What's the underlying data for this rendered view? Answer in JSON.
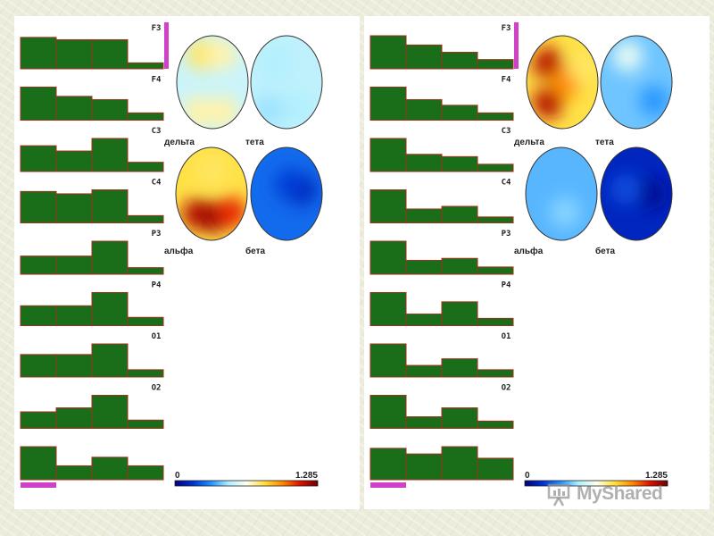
{
  "chart_data": [
    {
      "type": "bar",
      "categories": [
        "F3",
        "F4",
        "C3",
        "C4",
        "P3",
        "P4",
        "O1",
        "O2"
      ],
      "band_labels": [
        "дельта",
        "тета",
        "альфа",
        "бета"
      ],
      "channels": [
        {
          "name": "F3",
          "values": [
            0.95,
            0.88,
            0.88,
            0.18
          ],
          "marker": "right"
        },
        {
          "name": "F4",
          "values": [
            1.0,
            0.72,
            0.62,
            0.22
          ]
        },
        {
          "name": "C3",
          "values": [
            0.78,
            0.62,
            1.0,
            0.28
          ]
        },
        {
          "name": "C4",
          "values": [
            0.95,
            0.88,
            1.0,
            0.22
          ]
        },
        {
          "name": "P3",
          "values": [
            0.55,
            0.55,
            1.0,
            0.2
          ]
        },
        {
          "name": "P4",
          "values": [
            0.6,
            0.6,
            1.0,
            0.25
          ]
        },
        {
          "name": "O1",
          "values": [
            0.68,
            0.68,
            1.0,
            0.22
          ]
        },
        {
          "name": "O2",
          "values": [
            0.5,
            0.62,
            1.0,
            0.25
          ]
        },
        {
          "name": "",
          "values": [
            1.0,
            0.42,
            0.68,
            0.42
          ],
          "marker": "bottom"
        }
      ],
      "maps": [
        {
          "label": "дельта",
          "hot": [
            {
              "cx": 0.35,
              "cy": 0.2,
              "v": 0.6
            },
            {
              "cx": 0.62,
              "cy": 0.2,
              "v": 0.55
            },
            {
              "cx": 0.3,
              "cy": 0.82,
              "v": 0.55
            },
            {
              "cx": 0.65,
              "cy": 0.82,
              "v": 0.55
            }
          ],
          "base": 0.42
        },
        {
          "label": "тета",
          "hot": [
            {
              "cx": 0.35,
              "cy": 0.3,
              "v": 0.38
            },
            {
              "cx": 0.62,
              "cy": 0.78,
              "v": 0.38
            },
            {
              "cx": 0.25,
              "cy": 0.8,
              "v": 0.36
            }
          ],
          "base": 0.4
        },
        {
          "label": "альфа",
          "hot": [
            {
              "cx": 0.5,
              "cy": 0.25,
              "v": 0.6
            },
            {
              "cx": 0.3,
              "cy": 0.72,
              "v": 0.92
            },
            {
              "cx": 0.55,
              "cy": 0.75,
              "v": 0.95
            },
            {
              "cx": 0.78,
              "cy": 0.7,
              "v": 0.85
            }
          ],
          "base": 0.62
        },
        {
          "label": "бета",
          "hot": [
            {
              "cx": 0.7,
              "cy": 0.45,
              "v": 0.08
            },
            {
              "cx": 0.55,
              "cy": 0.4,
              "v": 0.14
            }
          ],
          "base": 0.2
        }
      ],
      "colorbar": {
        "min": "0",
        "max": "1.285"
      }
    },
    {
      "type": "bar",
      "categories": [
        "F3",
        "F4",
        "C3",
        "C4",
        "P3",
        "P4",
        "O1",
        "O2"
      ],
      "band_labels": [
        "дельта",
        "тета",
        "альфа",
        "бета"
      ],
      "channels": [
        {
          "name": "F3",
          "values": [
            1.0,
            0.72,
            0.5,
            0.28
          ],
          "marker": "right"
        },
        {
          "name": "F4",
          "values": [
            1.0,
            0.62,
            0.45,
            0.22
          ]
        },
        {
          "name": "C3",
          "values": [
            1.0,
            0.52,
            0.45,
            0.22
          ]
        },
        {
          "name": "C4",
          "values": [
            1.0,
            0.42,
            0.5,
            0.18
          ]
        },
        {
          "name": "P3",
          "values": [
            1.0,
            0.42,
            0.48,
            0.22
          ]
        },
        {
          "name": "P4",
          "values": [
            1.0,
            0.35,
            0.72,
            0.22
          ]
        },
        {
          "name": "O1",
          "values": [
            1.0,
            0.35,
            0.55,
            0.22
          ]
        },
        {
          "name": "O2",
          "values": [
            1.0,
            0.35,
            0.62,
            0.22
          ]
        },
        {
          "name": "",
          "values": [
            0.95,
            0.78,
            1.0,
            0.65
          ],
          "marker": "bottom"
        }
      ],
      "maps": [
        {
          "label": "дельта",
          "hot": [
            {
              "cx": 0.3,
              "cy": 0.3,
              "v": 0.92
            },
            {
              "cx": 0.3,
              "cy": 0.72,
              "v": 0.92
            },
            {
              "cx": 0.55,
              "cy": 0.5,
              "v": 0.75
            },
            {
              "cx": 0.8,
              "cy": 0.35,
              "v": 0.6
            }
          ],
          "base": 0.62
        },
        {
          "label": "тета",
          "hot": [
            {
              "cx": 0.38,
              "cy": 0.22,
              "v": 0.46
            },
            {
              "cx": 0.75,
              "cy": 0.7,
              "v": 0.26
            }
          ],
          "base": 0.32
        },
        {
          "label": "альфа",
          "hot": [
            {
              "cx": 0.55,
              "cy": 0.7,
              "v": 0.34
            }
          ],
          "base": 0.3
        },
        {
          "label": "бета",
          "hot": [
            {
              "cx": 0.72,
              "cy": 0.5,
              "v": 0.04
            },
            {
              "cx": 0.35,
              "cy": 0.45,
              "v": 0.16
            }
          ],
          "base": 0.1
        }
      ],
      "colorbar": {
        "min": "0",
        "max": "1.285"
      }
    }
  ],
  "colors": {
    "bar_fill": "#1a6e1a",
    "bar_stroke": "#a0301c",
    "marker": "#d040c8",
    "colormap": [
      "#00007a",
      "#0030d0",
      "#1e90ff",
      "#aeeeff",
      "#fffff0",
      "#ffe040",
      "#ff8c00",
      "#e01000",
      "#6a0000"
    ]
  },
  "watermark": {
    "text": "MyShared"
  }
}
